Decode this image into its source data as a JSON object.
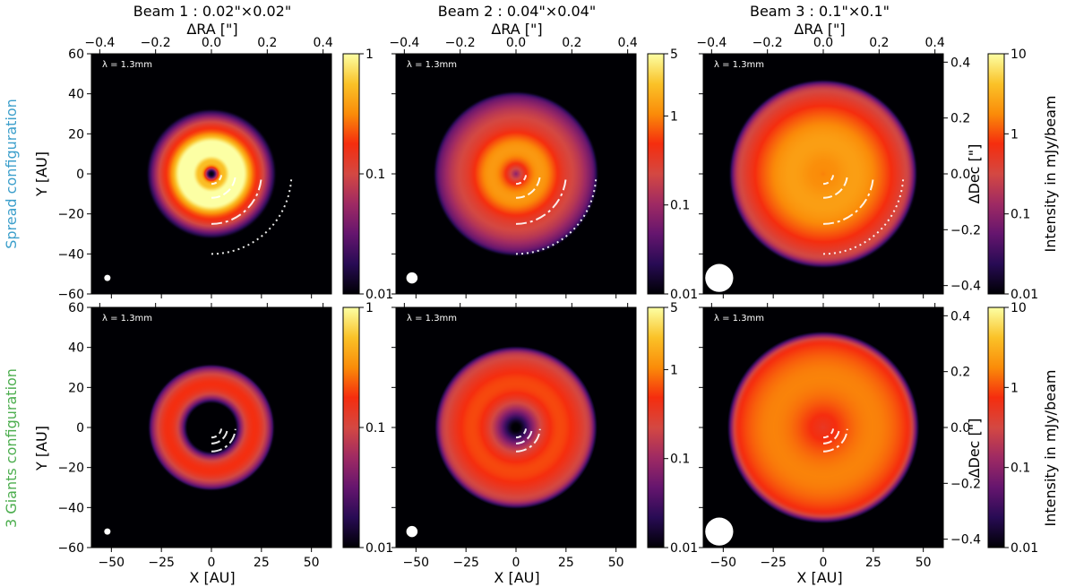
{
  "row_labels": [
    {
      "text": "Spread configuration",
      "color": "#3c9fcb"
    },
    {
      "text": "3 Giants configuration",
      "color": "#4dae4f"
    }
  ],
  "column_titles": [
    "Beam 1 : 0.02\"×0.02\"",
    "Beam 2 : 0.04\"×0.04\"",
    "Beam 3 : 0.1\"×0.1\""
  ],
  "top_axis_label": "ΔRA [\"]",
  "top_ticks": [
    "−0.4",
    "−0.2",
    "0.0",
    "0.2",
    "0.4"
  ],
  "x_axis_label": "X [AU]",
  "y_axis_label": "Y [AU]",
  "right_axis_label": "ΔDec [\"]",
  "right_ticks": [
    "0.4",
    "0.2",
    "0.0",
    "−0.2",
    "−0.4"
  ],
  "x_ticks": [
    "−50",
    "−25",
    "0",
    "25",
    "50"
  ],
  "y_ticks": [
    "60",
    "40",
    "20",
    "0",
    "−20",
    "−40",
    "−60"
  ],
  "wavelength_label": "λ = 1.3mm",
  "colorbar_label": "Intensity in mJy/beam",
  "colorbar_ticks": [
    [
      "1",
      "0.1",
      "0.01"
    ],
    [
      "5",
      "1",
      "0.1",
      "0.01"
    ],
    [
      "10",
      "1",
      "0.1",
      "0.01"
    ]
  ],
  "colormap": [
    "#000004",
    "#280b54",
    "#65156e",
    "#9f2a63",
    "#d44842",
    "#f52d0e",
    "#fa8c09",
    "#fac228",
    "#fcffa4"
  ],
  "chart_data": {
    "type": "heatmap",
    "panels": [
      {
        "row": "Spread configuration",
        "beam_arcsec": 0.02,
        "vmin": 0.01,
        "vmax": 1,
        "rings": [
          {
            "r_au": 10,
            "width_au": 2.5,
            "amp": 1.0
          },
          {
            "r_au": 15,
            "width_au": 2.5,
            "amp": 0.9
          },
          {
            "r_au": 20,
            "width_au": 5,
            "amp": 0.2
          }
        ],
        "inner_disk": {
          "r_au": 5,
          "width_au": 1.2,
          "amp": 0.35
        },
        "outer_edge_au": 36,
        "center_amp": 0.01,
        "planet_arcs_au": [
          5,
          12,
          25,
          40
        ]
      },
      {
        "row": "Spread configuration",
        "beam_arcsec": 0.04,
        "vmin": 0.01,
        "vmax": 5,
        "rings": [
          {
            "r_au": 12,
            "width_au": 5,
            "amp": 1.2
          },
          {
            "r_au": 24,
            "width_au": 8,
            "amp": 0.25
          }
        ],
        "outer_edge_au": 38,
        "center_amp": 0.01,
        "planet_arcs_au": [
          5,
          12,
          25,
          40
        ]
      },
      {
        "row": "Spread configuration",
        "beam_arcsec": 0.1,
        "vmin": 0.01,
        "vmax": 10,
        "rings": [
          {
            "r_au": 14,
            "width_au": 10,
            "amp": 2.0
          },
          {
            "r_au": 26,
            "width_au": 12,
            "amp": 0.6
          }
        ],
        "outer_edge_au": 42,
        "center_amp": 0.8,
        "planet_arcs_au": [
          5,
          12,
          25,
          40
        ]
      },
      {
        "row": "3 Giants configuration",
        "beam_arcsec": 0.02,
        "vmin": 0.01,
        "vmax": 1,
        "rings": [
          {
            "r_au": 19,
            "width_au": 3,
            "amp": 0.12
          },
          {
            "r_au": 23,
            "width_au": 2.5,
            "amp": 0.1
          },
          {
            "r_au": 27,
            "width_au": 2.5,
            "amp": 0.06
          }
        ],
        "outer_edge_au": 30,
        "center_amp": 0.005,
        "planet_arcs_au": [
          5,
          8,
          12
        ]
      },
      {
        "row": "3 Giants configuration",
        "beam_arcsec": 0.04,
        "vmin": 0.01,
        "vmax": 5,
        "rings": [
          {
            "r_au": 20,
            "width_au": 6,
            "amp": 0.4
          },
          {
            "r_au": 28,
            "width_au": 8,
            "amp": 0.3
          }
        ],
        "outer_edge_au": 36,
        "center_amp": 0.005,
        "planet_arcs_au": [
          5,
          8,
          12
        ]
      },
      {
        "row": "3 Giants configuration",
        "beam_arcsec": 0.1,
        "vmin": 0.01,
        "vmax": 10,
        "rings": [
          {
            "r_au": 22,
            "width_au": 14,
            "amp": 1.2
          },
          {
            "r_au": 30,
            "width_au": 12,
            "amp": 0.5
          }
        ],
        "outer_edge_au": 42,
        "center_amp": 0.15,
        "planet_arcs_au": [
          5,
          8,
          12
        ]
      }
    ],
    "xlim": [
      -60,
      60
    ],
    "ylim": [
      -60,
      60
    ],
    "ra_lim": [
      -0.43,
      0.43
    ],
    "dec_lim": [
      -0.43,
      0.43
    ],
    "grid": false
  }
}
